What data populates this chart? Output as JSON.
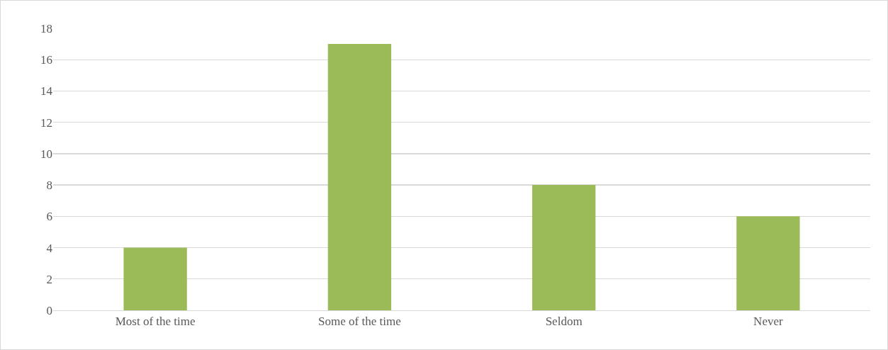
{
  "chart_data": {
    "type": "bar",
    "categories": [
      "Most of the time",
      "Some of the time",
      "Seldom",
      "Never"
    ],
    "values": [
      4,
      17,
      8,
      6
    ],
    "color": "#9bbb59",
    "ylim": [
      0,
      18
    ],
    "yticks": [
      0,
      2,
      4,
      6,
      8,
      10,
      12,
      14,
      16,
      18
    ],
    "grid": "y",
    "legend": false
  }
}
